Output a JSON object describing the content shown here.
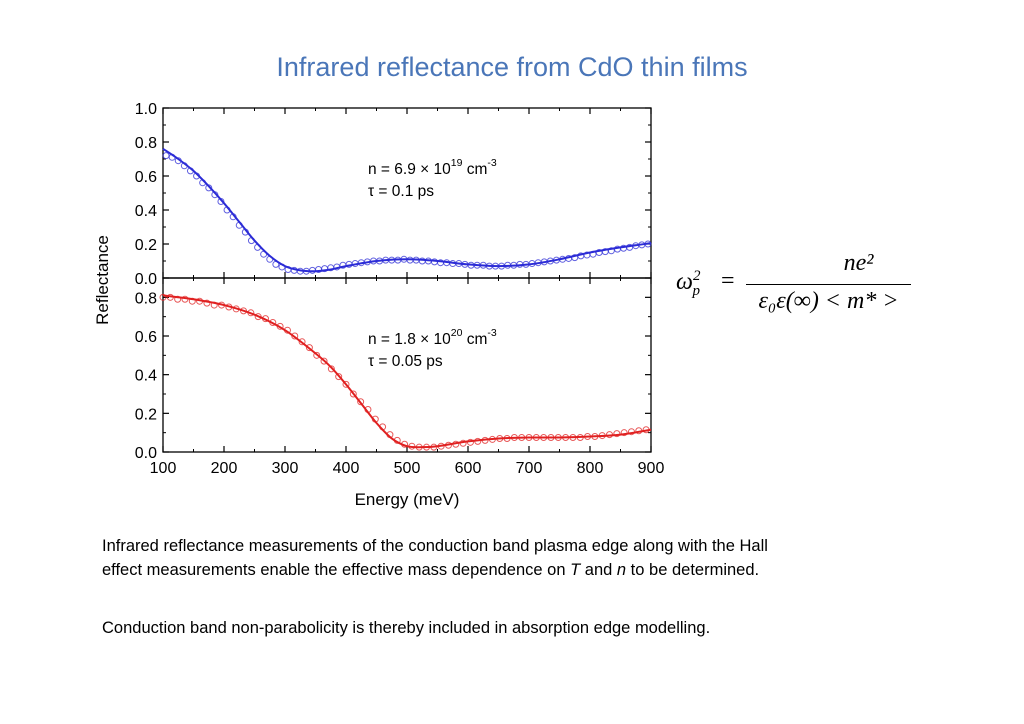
{
  "slide": {
    "title": "Infrared reflectance from CdO thin films"
  },
  "chart_data": {
    "type": "scatter",
    "xlabel": "Energy (meV)",
    "ylabel": "Reflectance",
    "xlim": [
      100,
      900
    ],
    "x_ticks": [
      "100",
      "200",
      "300",
      "400",
      "500",
      "600",
      "700",
      "800",
      "900"
    ],
    "grid": false,
    "panels": [
      {
        "position": "top",
        "ylim": [
          0.0,
          1.0
        ],
        "y_ticks": [
          "0.0",
          "0.2",
          "0.4",
          "0.6",
          "0.8",
          "1.0"
        ],
        "color": "#2b2bd6",
        "annotation_line1": "n = 6.9 × 10",
        "annotation_line1_sup": "19",
        "annotation_line1_unit": " cm",
        "annotation_line1_unit_sup": "-3",
        "annotation_line2": "τ = 0.1 ps",
        "fit_x": [
          100,
          125,
          150,
          175,
          200,
          225,
          250,
          275,
          300,
          325,
          350,
          375,
          400,
          450,
          500,
          550,
          600,
          650,
          700,
          750,
          800,
          850,
          900
        ],
        "fit_y": [
          0.76,
          0.7,
          0.63,
          0.54,
          0.44,
          0.33,
          0.22,
          0.13,
          0.07,
          0.045,
          0.04,
          0.05,
          0.07,
          0.1,
          0.11,
          0.1,
          0.08,
          0.07,
          0.08,
          0.11,
          0.15,
          0.18,
          0.205
        ],
        "data_x": [
          105,
          115,
          125,
          135,
          145,
          155,
          165,
          175,
          185,
          195,
          205,
          215,
          225,
          235,
          245,
          255,
          265,
          275,
          285,
          295,
          305,
          315,
          325,
          335,
          345,
          355,
          365,
          375,
          385,
          395,
          405,
          415,
          425,
          435,
          445,
          455,
          465,
          475,
          485,
          495,
          505,
          515,
          525,
          535,
          545,
          555,
          565,
          575,
          585,
          595,
          605,
          615,
          625,
          635,
          645,
          655,
          665,
          675,
          685,
          695,
          705,
          715,
          725,
          735,
          745,
          755,
          765,
          775,
          785,
          795,
          805,
          815,
          825,
          835,
          845,
          855,
          865,
          875,
          885,
          895
        ],
        "data_y": [
          0.72,
          0.71,
          0.69,
          0.66,
          0.63,
          0.6,
          0.56,
          0.53,
          0.49,
          0.45,
          0.4,
          0.36,
          0.31,
          0.27,
          0.22,
          0.18,
          0.14,
          0.11,
          0.08,
          0.065,
          0.05,
          0.045,
          0.04,
          0.04,
          0.045,
          0.05,
          0.055,
          0.06,
          0.065,
          0.075,
          0.08,
          0.085,
          0.09,
          0.095,
          0.1,
          0.1,
          0.105,
          0.105,
          0.105,
          0.11,
          0.105,
          0.105,
          0.1,
          0.1,
          0.095,
          0.09,
          0.09,
          0.085,
          0.085,
          0.08,
          0.075,
          0.075,
          0.075,
          0.07,
          0.07,
          0.07,
          0.075,
          0.075,
          0.08,
          0.08,
          0.085,
          0.09,
          0.095,
          0.1,
          0.105,
          0.11,
          0.115,
          0.12,
          0.13,
          0.135,
          0.14,
          0.15,
          0.155,
          0.16,
          0.17,
          0.175,
          0.18,
          0.19,
          0.195,
          0.2
        ]
      },
      {
        "position": "bottom",
        "ylim": [
          0.0,
          0.9
        ],
        "y_ticks": [
          "0.0",
          "0.2",
          "0.4",
          "0.6",
          "0.8"
        ],
        "color": "#e02020",
        "annotation_line1": "n = 1.8 × 10",
        "annotation_line1_sup": "20",
        "annotation_line1_unit": " cm",
        "annotation_line1_unit_sup": "-3",
        "annotation_line2": "τ = 0.05 ps",
        "fit_x": [
          100,
          150,
          200,
          250,
          300,
          350,
          375,
          400,
          425,
          450,
          475,
          500,
          525,
          550,
          600,
          650,
          700,
          750,
          800,
          850,
          900
        ],
        "fit_y": [
          0.81,
          0.79,
          0.76,
          0.71,
          0.63,
          0.51,
          0.44,
          0.35,
          0.25,
          0.15,
          0.07,
          0.03,
          0.025,
          0.03,
          0.055,
          0.07,
          0.075,
          0.075,
          0.08,
          0.09,
          0.115
        ],
        "data_x": [
          100,
          112,
          124,
          136,
          148,
          160,
          172,
          184,
          196,
          208,
          220,
          232,
          244,
          256,
          268,
          280,
          292,
          304,
          316,
          328,
          340,
          352,
          364,
          376,
          388,
          400,
          412,
          424,
          436,
          448,
          460,
          472,
          484,
          496,
          508,
          520,
          532,
          544,
          556,
          568,
          580,
          592,
          604,
          616,
          628,
          640,
          652,
          664,
          676,
          688,
          700,
          712,
          724,
          736,
          748,
          760,
          772,
          784,
          796,
          808,
          820,
          832,
          844,
          856,
          868,
          880,
          892
        ],
        "data_y": [
          0.8,
          0.8,
          0.79,
          0.79,
          0.78,
          0.78,
          0.77,
          0.76,
          0.76,
          0.75,
          0.74,
          0.73,
          0.72,
          0.7,
          0.69,
          0.67,
          0.65,
          0.63,
          0.6,
          0.57,
          0.54,
          0.5,
          0.47,
          0.43,
          0.39,
          0.35,
          0.3,
          0.26,
          0.22,
          0.17,
          0.13,
          0.09,
          0.06,
          0.04,
          0.03,
          0.025,
          0.025,
          0.025,
          0.03,
          0.035,
          0.04,
          0.045,
          0.05,
          0.055,
          0.06,
          0.065,
          0.07,
          0.07,
          0.075,
          0.075,
          0.075,
          0.075,
          0.075,
          0.075,
          0.075,
          0.075,
          0.075,
          0.075,
          0.08,
          0.08,
          0.085,
          0.09,
          0.095,
          0.1,
          0.105,
          0.11,
          0.115
        ]
      }
    ]
  },
  "formula": {
    "lhs": "ω",
    "lhs_sup": "2",
    "lhs_sub": "p",
    "equals": "=",
    "numerator": "ne²",
    "denominator": "ε₀ε(∞) < m* >"
  },
  "body": {
    "paragraph1_line1": "Infrared reflectance measurements of the conduction band plasma edge along with the Hall",
    "paragraph1_line2_a": "effect measurements enable the effective mass dependence on ",
    "paragraph1_line2_T": "T",
    "paragraph1_line2_and": " and ",
    "paragraph1_line2_n": "n",
    "paragraph1_line2_b": " to be determined.",
    "paragraph2": "Conduction band non-parabolicity is thereby included in absorption edge modelling."
  }
}
